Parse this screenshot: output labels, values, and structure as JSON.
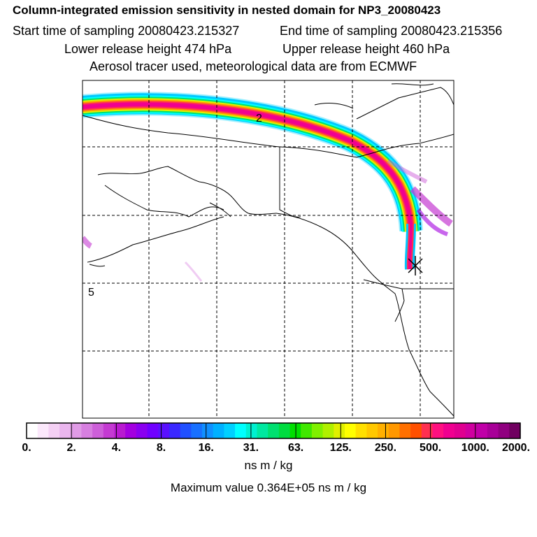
{
  "title": "Column-integrated emission sensitivity in nested domain for NP3_20080423",
  "start_time": "Start time of sampling 20080423.215327",
  "end_time": "End time of sampling 20080423.215356",
  "lower_height": "Lower release height  474 hPa",
  "upper_height": "Upper release height  460 hPa",
  "tracer_line": "Aerosol tracer used, meteorological data are from ECMWF",
  "map": {
    "day_labels": [
      {
        "text": "2"
      },
      {
        "text": "5"
      }
    ]
  },
  "colorbar": {
    "tick_labels": [
      "0.",
      "2.",
      "4.",
      "8.",
      "16.",
      "31.",
      "63.",
      "125.",
      "250.",
      "500.",
      "1000.",
      "2000."
    ],
    "colors": [
      "#ffffff",
      "#fbe8fb",
      "#f4d0f4",
      "#eab6ee",
      "#e09be6",
      "#d77fe0",
      "#cd5fd9",
      "#c43ad2",
      "#b81ad0",
      "#a300e0",
      "#8a00f0",
      "#7000ff",
      "#5a10ff",
      "#3a28ff",
      "#2050ff",
      "#1870ff",
      "#1090ff",
      "#00b0ff",
      "#00d0ff",
      "#00ffff",
      "#00f0d0",
      "#00e8a0",
      "#00e070",
      "#00dc40",
      "#00e000",
      "#40e800",
      "#80f000",
      "#b0f000",
      "#e0f000",
      "#ffff00",
      "#ffe000",
      "#ffc800",
      "#ffb000",
      "#ff9800",
      "#ff7000",
      "#ff5000",
      "#ff3050",
      "#ff1080",
      "#f00090",
      "#e00090",
      "#d000a0",
      "#c000a8",
      "#a80098",
      "#900080",
      "#700060"
    ]
  },
  "units": "ns m / kg",
  "max_value": "Maximum value  0.364E+05 ns m / kg"
}
